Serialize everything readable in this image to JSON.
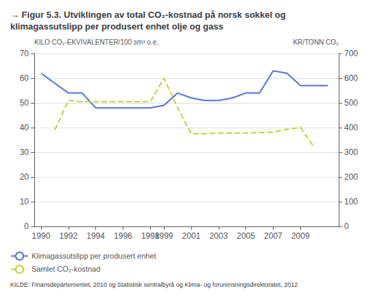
{
  "chart_data": {
    "type": "line",
    "title": "→ Figur 5.3. Utviklingen av total CO₂-kostnad på norsk sokkel og\nklimagassutslipp per produsert enhet olje og gass",
    "ylabel": "KILO CO₂-EKVIVALENTER/100 sm³ o.e.",
    "y2label": "KR/TONN CO₂",
    "source": "KILDE: Finansdepartementet, 2010 og Statistisk sentralbyrå og Klima- og forurensningsdirektoratet, 2012",
    "xlim": [
      1989.5,
      2011.8
    ],
    "xticks": [
      1990,
      1992,
      1994,
      1996,
      1998,
      1999,
      2001,
      2003,
      2005,
      2007,
      2009
    ],
    "ylim": [
      0,
      70
    ],
    "yticks": [
      0,
      10,
      20,
      30,
      40,
      50,
      60,
      70
    ],
    "y2lim": [
      0,
      700
    ],
    "y2ticks": [
      0,
      100,
      200,
      300,
      400,
      500,
      600,
      700
    ],
    "grid": true,
    "legend": "lower left",
    "series": [
      {
        "name": "Klimagassutslipp per produsert enhet",
        "line_style": "solid",
        "x": [
          1990,
          1991,
          1992,
          1993,
          1994,
          1995,
          1996,
          1997,
          1998,
          1999,
          2000,
          2001,
          2002,
          2003,
          2004,
          2005,
          2006,
          2007,
          2008,
          2009,
          2010,
          2011
        ],
        "values": [
          62,
          58,
          54,
          54,
          48,
          48,
          48,
          48,
          48,
          49,
          54,
          52,
          51,
          51,
          52,
          54,
          54,
          63,
          62,
          57,
          57,
          57
        ]
      },
      {
        "name": "Samlet CO₂-kostnad",
        "line_style": "dashed",
        "axis": "y2",
        "x": [
          1991,
          1992,
          1993,
          1994,
          1995,
          1996,
          1997,
          1998,
          1999,
          2000,
          2001,
          2002,
          2003,
          2004,
          2005,
          2006,
          2007,
          2008,
          2009,
          2010
        ],
        "values": [
          390,
          510,
          505,
          505,
          505,
          505,
          505,
          505,
          600,
          480,
          375,
          375,
          378,
          378,
          378,
          380,
          382,
          393,
          400,
          320
        ]
      }
    ]
  }
}
